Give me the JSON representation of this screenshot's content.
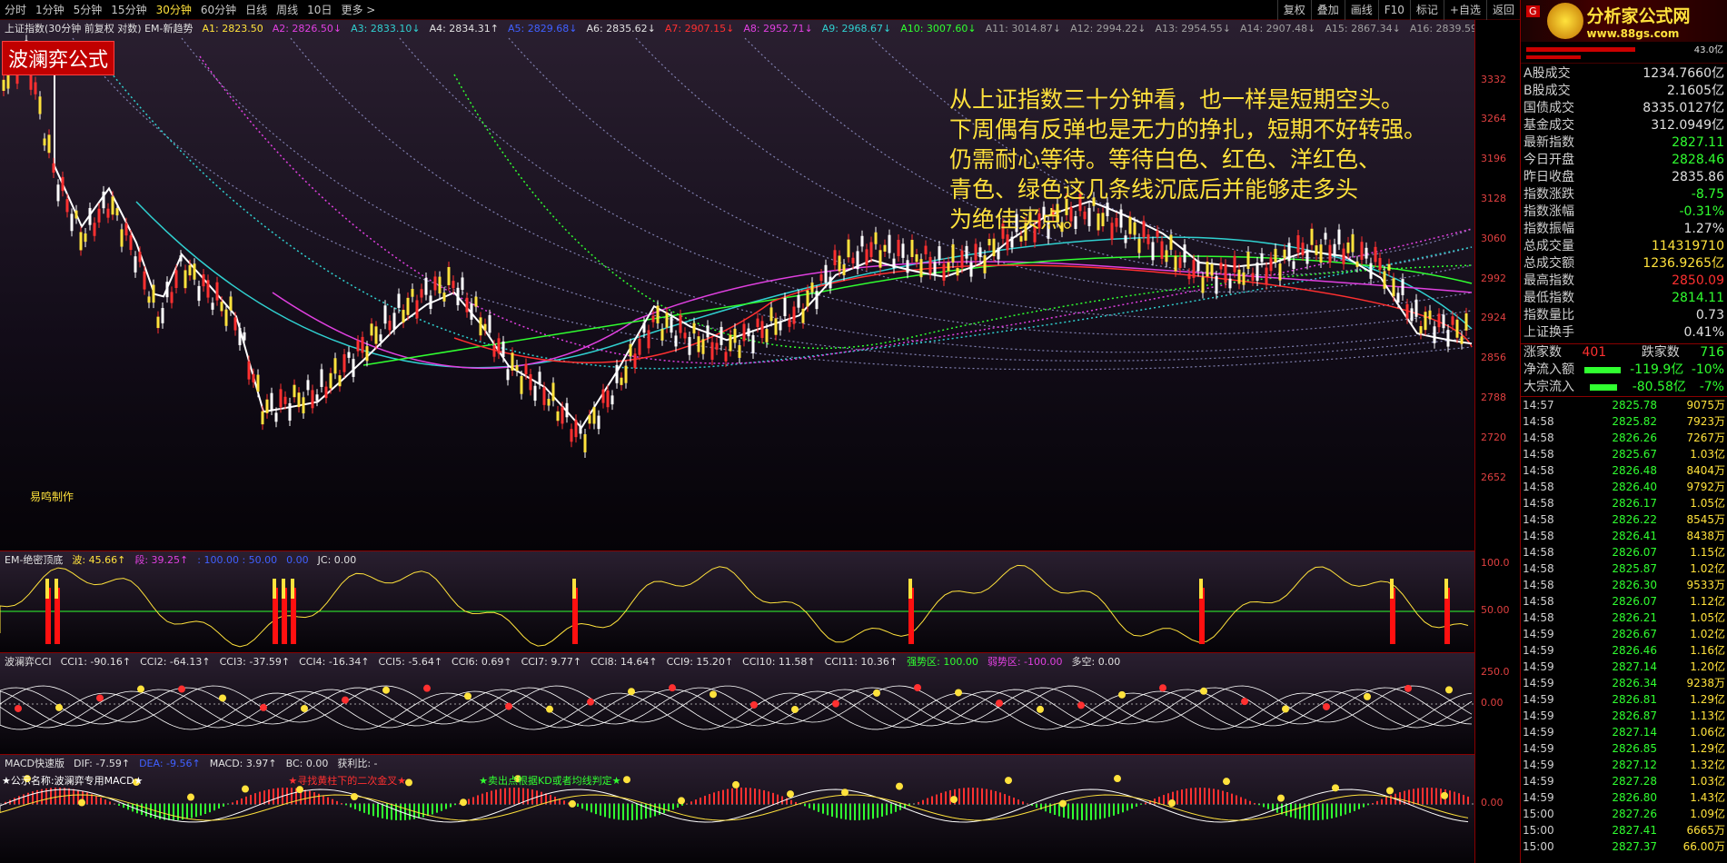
{
  "toolbar": {
    "timeframes": [
      "分时",
      "1分钟",
      "5分钟",
      "15分钟",
      "30分钟",
      "60分钟",
      "日线",
      "周线",
      "10日",
      "更多 >"
    ],
    "active_timeframe": "30分钟",
    "tools": [
      "复权",
      "叠加",
      "画线",
      "F10",
      "标记",
      "+自选",
      "返回"
    ]
  },
  "main_legend": {
    "title": "上证指数(30分钟 前复权 对数) EM-新趋势",
    "items": [
      {
        "label": "A1: 2823.50",
        "color": "#ffe23c"
      },
      {
        "label": "A2: 2826.50↓",
        "color": "#e040e0"
      },
      {
        "label": "A3: 2833.10↓",
        "color": "#30d0d0"
      },
      {
        "label": "A4: 2834.31↑",
        "color": "#e0e0e0"
      },
      {
        "label": "A5: 2829.68↓",
        "color": "#4060ff"
      },
      {
        "label": "A6: 2835.62↓",
        "color": "#e0e0e0"
      },
      {
        "label": "A7: 2907.15↓",
        "color": "#ff3030"
      },
      {
        "label": "A8: 2952.71↓",
        "color": "#e040e0"
      },
      {
        "label": "A9: 2968.67↓",
        "color": "#30d0d0"
      },
      {
        "label": "A10: 3007.60↓",
        "color": "#30ff30"
      },
      {
        "label": "A11: 3014.87↓",
        "color": "#a0a0a0"
      },
      {
        "label": "A12: 2994.22↓",
        "color": "#a0a0a0"
      },
      {
        "label": "A13: 2954.55↓",
        "color": "#a0a0a0"
      },
      {
        "label": "A14: 2907.48↓",
        "color": "#a0a0a0"
      },
      {
        "label": "A15: 2867.34↓",
        "color": "#a0a0a0"
      },
      {
        "label": "A16: 2839.59↓",
        "color": "#a0a0a0"
      }
    ]
  },
  "badge": "波澜弈公式",
  "annotation": [
    "从上证指数三十分钟看，也一样是短期空头。",
    "下周偶有反弹也是无力的挣扎，短期不好转强。",
    "仍需耐心等待。等待白色、红色、洋红色、",
    "青色、绿色这几条线沉底后并能够走多头",
    "为绝佳买点。"
  ],
  "maker": "易鸣制作",
  "price_axis": [
    "3332",
    "3264",
    "3196",
    "3128",
    "3060",
    "2992",
    "2924",
    "2856",
    "2788",
    "2720",
    "2652"
  ],
  "panel1": {
    "title": "EM-绝密顶底",
    "items": [
      {
        "label": "波: 45.66↑",
        "color": "#ffe23c"
      },
      {
        "label": "段: 39.25↑",
        "color": "#e040e0"
      },
      {
        "label": ": 100.00 : 50.00",
        "color": "#4060ff"
      },
      {
        "label": "0.00",
        "color": "#4060ff"
      },
      {
        "label": "JC: 0.00",
        "color": "#e0e0e0"
      }
    ],
    "axis": [
      "100.0",
      "50.00"
    ]
  },
  "panel2": {
    "title": "波澜弈CCI",
    "items": [
      {
        "label": "CCI1: -90.16↑",
        "color": "#e0e0e0"
      },
      {
        "label": "CCI2: -64.13↑",
        "color": "#e0e0e0"
      },
      {
        "label": "CCI3: -37.59↑",
        "color": "#e0e0e0"
      },
      {
        "label": "CCI4: -16.34↑",
        "color": "#e0e0e0"
      },
      {
        "label": "CCI5: -5.64↑",
        "color": "#e0e0e0"
      },
      {
        "label": "CCI6: 0.69↑",
        "color": "#e0e0e0"
      },
      {
        "label": "CCI7: 9.77↑",
        "color": "#e0e0e0"
      },
      {
        "label": "CCI8: 14.64↑",
        "color": "#e0e0e0"
      },
      {
        "label": "CCI9: 15.20↑",
        "color": "#e0e0e0"
      },
      {
        "label": "CCI10: 11.58↑",
        "color": "#e0e0e0"
      },
      {
        "label": "CCI11: 10.36↑",
        "color": "#e0e0e0"
      },
      {
        "label": "强势区: 100.00",
        "color": "#30ff30"
      },
      {
        "label": "弱势区: -100.00",
        "color": "#e040e0"
      },
      {
        "label": "多空: 0.00",
        "color": "#e0e0e0"
      }
    ],
    "axis": [
      "250.0",
      "0.00"
    ]
  },
  "panel3": {
    "title": "MACD快速版",
    "items": [
      {
        "label": "DIF: -7.59↑",
        "color": "#e0e0e0"
      },
      {
        "label": "DEA: -9.56↑",
        "color": "#4060ff"
      },
      {
        "label": "MACD: 3.97↑",
        "color": "#e0e0e0"
      },
      {
        "label": "BC: 0.00",
        "color": "#e0e0e0"
      },
      {
        "label": "获利比: -",
        "color": "#e0e0e0"
      }
    ],
    "notes": [
      {
        "text": "★公示名称:波澜弈专用MACD★",
        "color": "#ffffff"
      },
      {
        "text": "★寻找黄柱下的二次金叉★",
        "color": "#ff3030"
      },
      {
        "text": "★卖出点根据KD或者均线判定★",
        "color": "#30ff30"
      }
    ],
    "axis": [
      "0.00"
    ]
  },
  "sidebar": {
    "brand": "分析家公式网",
    "brand_url": "www.88gs.com",
    "g_badge": "G",
    "top_value": "43.0亿",
    "stats": [
      {
        "label": "A股成交",
        "value": "1234.7660亿",
        "cls": "v-white"
      },
      {
        "label": "B股成交",
        "value": "2.1605亿",
        "cls": "v-white"
      },
      {
        "label": "国债成交",
        "value": "8335.0127亿",
        "cls": "v-white"
      },
      {
        "label": "基金成交",
        "value": "312.0949亿",
        "cls": "v-white"
      },
      {
        "label": "最新指数",
        "value": "2827.11",
        "cls": "v-green"
      },
      {
        "label": "今日开盘",
        "value": "2828.46",
        "cls": "v-green"
      },
      {
        "label": "昨日收盘",
        "value": "2835.86",
        "cls": "v-white"
      },
      {
        "label": "指数涨跌",
        "value": "-8.75",
        "cls": "v-green"
      },
      {
        "label": "指数涨幅",
        "value": "-0.31%",
        "cls": "v-green"
      },
      {
        "label": "指数振幅",
        "value": "1.27%",
        "cls": "v-white"
      },
      {
        "label": "总成交量",
        "value": "114319710",
        "cls": "v-yellow"
      },
      {
        "label": "总成交额",
        "value": "1236.9265亿",
        "cls": "v-yellow"
      },
      {
        "label": "最高指数",
        "value": "2850.09",
        "cls": "v-red"
      },
      {
        "label": "最低指数",
        "value": "2814.11",
        "cls": "v-green"
      },
      {
        "label": "指数量比",
        "value": "0.73",
        "cls": "v-white"
      },
      {
        "label": "上证换手",
        "value": "0.41%",
        "cls": "v-white"
      }
    ],
    "advance_label": "涨家数",
    "advance": "401",
    "decline_label": "跌家数",
    "decline": "716",
    "netflow_label": "净流入额",
    "netflow": "-119.9亿",
    "netflow_pct": "-10%",
    "block_label": "大宗流入",
    "block": "-80.58亿",
    "block_pct": "-7%",
    "trades": [
      [
        "14:57",
        "2825.78",
        "9075万"
      ],
      [
        "14:58",
        "2825.82",
        "7923万"
      ],
      [
        "14:58",
        "2826.26",
        "7267万"
      ],
      [
        "14:58",
        "2825.67",
        "1.03亿"
      ],
      [
        "14:58",
        "2826.48",
        "8404万"
      ],
      [
        "14:58",
        "2826.40",
        "9792万"
      ],
      [
        "14:58",
        "2826.17",
        "1.05亿"
      ],
      [
        "14:58",
        "2826.22",
        "8545万"
      ],
      [
        "14:58",
        "2826.41",
        "8438万"
      ],
      [
        "14:58",
        "2826.07",
        "1.15亿"
      ],
      [
        "14:58",
        "2825.87",
        "1.02亿"
      ],
      [
        "14:58",
        "2826.30",
        "9533万"
      ],
      [
        "14:58",
        "2826.07",
        "1.12亿"
      ],
      [
        "14:58",
        "2826.21",
        "1.05亿"
      ],
      [
        "14:59",
        "2826.67",
        "1.02亿"
      ],
      [
        "14:59",
        "2826.46",
        "1.16亿"
      ],
      [
        "14:59",
        "2827.14",
        "1.20亿"
      ],
      [
        "14:59",
        "2826.34",
        "9238万"
      ],
      [
        "14:59",
        "2826.81",
        "1.29亿"
      ],
      [
        "14:59",
        "2826.87",
        "1.13亿"
      ],
      [
        "14:59",
        "2827.14",
        "1.06亿"
      ],
      [
        "14:59",
        "2826.85",
        "1.29亿"
      ],
      [
        "14:59",
        "2827.12",
        "1.32亿"
      ],
      [
        "14:59",
        "2827.28",
        "1.03亿"
      ],
      [
        "14:59",
        "2826.80",
        "1.43亿"
      ],
      [
        "15:00",
        "2827.26",
        "1.09亿"
      ],
      [
        "15:00",
        "2827.41",
        "6665万"
      ],
      [
        "15:00",
        "2827.37",
        "66.00万"
      ]
    ]
  }
}
